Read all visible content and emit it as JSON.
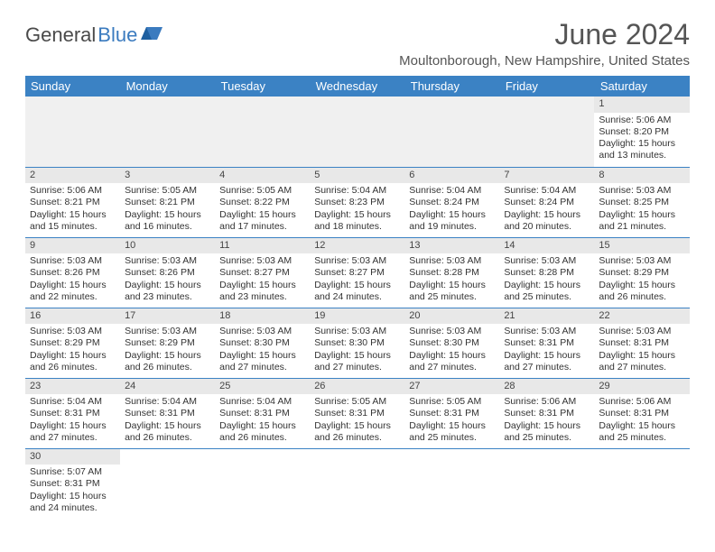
{
  "logo": {
    "part1": "General",
    "part2": "Blue"
  },
  "title": "June 2024",
  "location": "Moultonborough, New Hampshire, United States",
  "colors": {
    "header_bg": "#3b82c4",
    "header_text": "#ffffff",
    "daynum_bg": "#e8e8e8",
    "border": "#3b82c4",
    "logo_accent": "#3b7bbf"
  },
  "weekdays": [
    "Sunday",
    "Monday",
    "Tuesday",
    "Wednesday",
    "Thursday",
    "Friday",
    "Saturday"
  ],
  "weeks": [
    [
      null,
      null,
      null,
      null,
      null,
      null,
      {
        "n": "1",
        "sr": "Sunrise: 5:06 AM",
        "ss": "Sunset: 8:20 PM",
        "dl": "Daylight: 15 hours and 13 minutes."
      }
    ],
    [
      {
        "n": "2",
        "sr": "Sunrise: 5:06 AM",
        "ss": "Sunset: 8:21 PM",
        "dl": "Daylight: 15 hours and 15 minutes."
      },
      {
        "n": "3",
        "sr": "Sunrise: 5:05 AM",
        "ss": "Sunset: 8:21 PM",
        "dl": "Daylight: 15 hours and 16 minutes."
      },
      {
        "n": "4",
        "sr": "Sunrise: 5:05 AM",
        "ss": "Sunset: 8:22 PM",
        "dl": "Daylight: 15 hours and 17 minutes."
      },
      {
        "n": "5",
        "sr": "Sunrise: 5:04 AM",
        "ss": "Sunset: 8:23 PM",
        "dl": "Daylight: 15 hours and 18 minutes."
      },
      {
        "n": "6",
        "sr": "Sunrise: 5:04 AM",
        "ss": "Sunset: 8:24 PM",
        "dl": "Daylight: 15 hours and 19 minutes."
      },
      {
        "n": "7",
        "sr": "Sunrise: 5:04 AM",
        "ss": "Sunset: 8:24 PM",
        "dl": "Daylight: 15 hours and 20 minutes."
      },
      {
        "n": "8",
        "sr": "Sunrise: 5:03 AM",
        "ss": "Sunset: 8:25 PM",
        "dl": "Daylight: 15 hours and 21 minutes."
      }
    ],
    [
      {
        "n": "9",
        "sr": "Sunrise: 5:03 AM",
        "ss": "Sunset: 8:26 PM",
        "dl": "Daylight: 15 hours and 22 minutes."
      },
      {
        "n": "10",
        "sr": "Sunrise: 5:03 AM",
        "ss": "Sunset: 8:26 PM",
        "dl": "Daylight: 15 hours and 23 minutes."
      },
      {
        "n": "11",
        "sr": "Sunrise: 5:03 AM",
        "ss": "Sunset: 8:27 PM",
        "dl": "Daylight: 15 hours and 23 minutes."
      },
      {
        "n": "12",
        "sr": "Sunrise: 5:03 AM",
        "ss": "Sunset: 8:27 PM",
        "dl": "Daylight: 15 hours and 24 minutes."
      },
      {
        "n": "13",
        "sr": "Sunrise: 5:03 AM",
        "ss": "Sunset: 8:28 PM",
        "dl": "Daylight: 15 hours and 25 minutes."
      },
      {
        "n": "14",
        "sr": "Sunrise: 5:03 AM",
        "ss": "Sunset: 8:28 PM",
        "dl": "Daylight: 15 hours and 25 minutes."
      },
      {
        "n": "15",
        "sr": "Sunrise: 5:03 AM",
        "ss": "Sunset: 8:29 PM",
        "dl": "Daylight: 15 hours and 26 minutes."
      }
    ],
    [
      {
        "n": "16",
        "sr": "Sunrise: 5:03 AM",
        "ss": "Sunset: 8:29 PM",
        "dl": "Daylight: 15 hours and 26 minutes."
      },
      {
        "n": "17",
        "sr": "Sunrise: 5:03 AM",
        "ss": "Sunset: 8:29 PM",
        "dl": "Daylight: 15 hours and 26 minutes."
      },
      {
        "n": "18",
        "sr": "Sunrise: 5:03 AM",
        "ss": "Sunset: 8:30 PM",
        "dl": "Daylight: 15 hours and 27 minutes."
      },
      {
        "n": "19",
        "sr": "Sunrise: 5:03 AM",
        "ss": "Sunset: 8:30 PM",
        "dl": "Daylight: 15 hours and 27 minutes."
      },
      {
        "n": "20",
        "sr": "Sunrise: 5:03 AM",
        "ss": "Sunset: 8:30 PM",
        "dl": "Daylight: 15 hours and 27 minutes."
      },
      {
        "n": "21",
        "sr": "Sunrise: 5:03 AM",
        "ss": "Sunset: 8:31 PM",
        "dl": "Daylight: 15 hours and 27 minutes."
      },
      {
        "n": "22",
        "sr": "Sunrise: 5:03 AM",
        "ss": "Sunset: 8:31 PM",
        "dl": "Daylight: 15 hours and 27 minutes."
      }
    ],
    [
      {
        "n": "23",
        "sr": "Sunrise: 5:04 AM",
        "ss": "Sunset: 8:31 PM",
        "dl": "Daylight: 15 hours and 27 minutes."
      },
      {
        "n": "24",
        "sr": "Sunrise: 5:04 AM",
        "ss": "Sunset: 8:31 PM",
        "dl": "Daylight: 15 hours and 26 minutes."
      },
      {
        "n": "25",
        "sr": "Sunrise: 5:04 AM",
        "ss": "Sunset: 8:31 PM",
        "dl": "Daylight: 15 hours and 26 minutes."
      },
      {
        "n": "26",
        "sr": "Sunrise: 5:05 AM",
        "ss": "Sunset: 8:31 PM",
        "dl": "Daylight: 15 hours and 26 minutes."
      },
      {
        "n": "27",
        "sr": "Sunrise: 5:05 AM",
        "ss": "Sunset: 8:31 PM",
        "dl": "Daylight: 15 hours and 25 minutes."
      },
      {
        "n": "28",
        "sr": "Sunrise: 5:06 AM",
        "ss": "Sunset: 8:31 PM",
        "dl": "Daylight: 15 hours and 25 minutes."
      },
      {
        "n": "29",
        "sr": "Sunrise: 5:06 AM",
        "ss": "Sunset: 8:31 PM",
        "dl": "Daylight: 15 hours and 25 minutes."
      }
    ],
    [
      {
        "n": "30",
        "sr": "Sunrise: 5:07 AM",
        "ss": "Sunset: 8:31 PM",
        "dl": "Daylight: 15 hours and 24 minutes."
      },
      null,
      null,
      null,
      null,
      null,
      null
    ]
  ]
}
